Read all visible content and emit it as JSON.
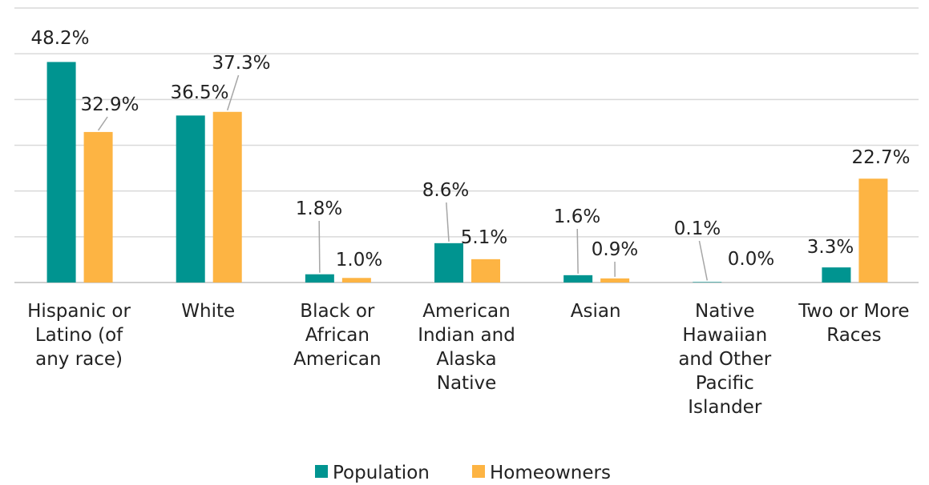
{
  "chart_data": {
    "type": "bar",
    "categories": [
      "Hispanic or Latino (of any race)",
      "White",
      "Black or African American",
      "American Indian and Alaska Native",
      "Asian",
      "Native Hawaiian and Other Pacific Islander",
      "Two or More Races"
    ],
    "series": [
      {
        "name": "Population",
        "color": "#009490",
        "values": [
          48.2,
          36.5,
          1.8,
          8.6,
          1.6,
          0.1,
          3.3
        ],
        "value_labels": [
          "48.2%",
          "36.5%",
          "1.8%",
          "8.6%",
          "1.6%",
          "0.1%",
          "3.3%"
        ]
      },
      {
        "name": "Homeowners",
        "color": "#fdb443",
        "values": [
          32.9,
          37.3,
          1.0,
          5.1,
          0.9,
          0.0,
          22.7
        ],
        "value_labels": [
          "32.9%",
          "37.3%",
          "1.0%",
          "5.1%",
          "0.9%",
          "0.0%",
          "22.7%"
        ]
      }
    ],
    "ylim": [
      0,
      60
    ],
    "yticks": [
      0,
      10,
      20,
      30,
      40,
      50,
      60
    ],
    "grid": true,
    "legend": "bottom"
  }
}
